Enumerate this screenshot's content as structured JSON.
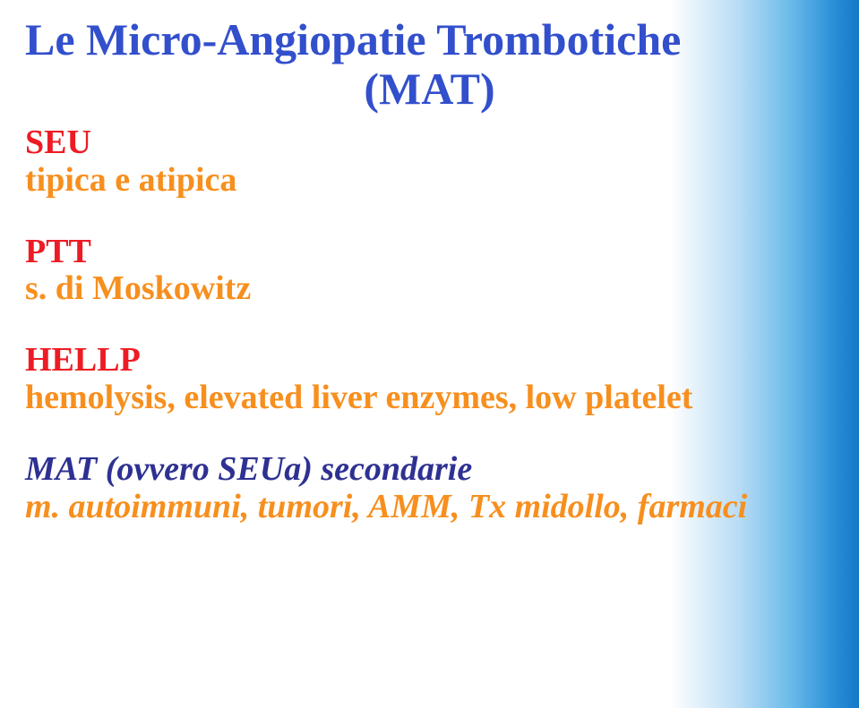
{
  "title": {
    "line1": "Le Micro-Angiopatie Trombotiche",
    "line2": "(MAT)"
  },
  "colors": {
    "title": "#324fcc",
    "group_header": "#ed1c24",
    "group_sub": "#f78f1e",
    "macro": "#2e3192",
    "macro_sub": "#f78f1e",
    "background_left": "#ffffff",
    "background_right": "#1478c8"
  },
  "typography": {
    "title_family": "Times New Roman",
    "body_family": "Comic Sans MS",
    "title_fontsize": 50,
    "body_fontsize": 38
  },
  "groups": [
    {
      "header": "SEU",
      "sub": "tipica e atipica"
    },
    {
      "header": "PTT",
      "sub": "s. di Moskowitz"
    },
    {
      "header": "HELLP",
      "sub": "hemolysis, elevated liver enzymes, low platelet"
    }
  ],
  "macro": {
    "line1": "MAT (ovvero SEUa) secondarie",
    "line2": "m. autoimmuni, tumori, AMM, Tx midollo, farmaci"
  }
}
